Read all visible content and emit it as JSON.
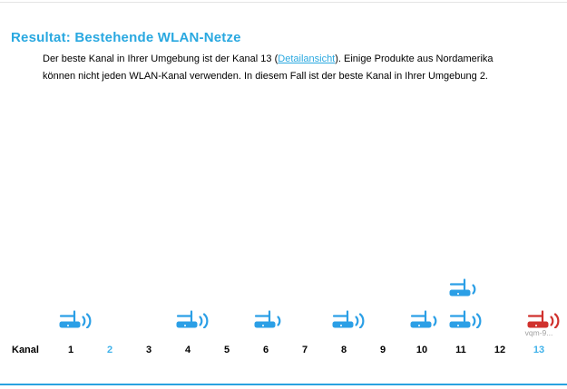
{
  "page": {
    "title": "Resultat: Bestehende WLAN-Netze"
  },
  "intro": {
    "line1_before": "Der beste Kanal in Ihrer Umgebung ist der Kanal 13 (",
    "link_text": "Detailansicht",
    "line1_after": "). Einige Produkte aus Nordamerika",
    "line2": "können nicht jeden WLAN-Kanal verwenden. In diesem Fall ist der beste Kanal in Ihrer Umgebung 2."
  },
  "chart_data": {
    "type": "scatter",
    "title": "",
    "xlabel": "Kanal",
    "categories": [
      "1",
      "2",
      "3",
      "4",
      "5",
      "6",
      "7",
      "8",
      "9",
      "10",
      "11",
      "12",
      "13"
    ],
    "highlighted_categories": [
      "2",
      "13"
    ],
    "best_channel": 13,
    "best_channel_north_america": 2,
    "networks": [
      {
        "channel": 1,
        "signal_waves": 2,
        "color": "blue",
        "stack": 0
      },
      {
        "channel": 4,
        "signal_waves": 2,
        "color": "blue",
        "stack": 0
      },
      {
        "channel": 6,
        "signal_waves": 1,
        "color": "blue",
        "stack": 0
      },
      {
        "channel": 8,
        "signal_waves": 2,
        "color": "blue",
        "stack": 0
      },
      {
        "channel": 10,
        "signal_waves": 1,
        "color": "blue",
        "stack": 0
      },
      {
        "channel": 11,
        "signal_waves": 1,
        "color": "blue",
        "stack": 1
      },
      {
        "channel": 11,
        "signal_waves": 2,
        "color": "blue",
        "stack": 0
      },
      {
        "channel": 13,
        "signal_waves": 2,
        "color": "red",
        "stack": 0,
        "ssid": "vqm-9..."
      }
    ]
  },
  "colors": {
    "accent": "#29a8e0",
    "network_blue": "#2b9fe6",
    "network_red": "#d0312d",
    "ssid_gray": "#a0a0a0",
    "bottom_rule": "#29a2e0"
  }
}
